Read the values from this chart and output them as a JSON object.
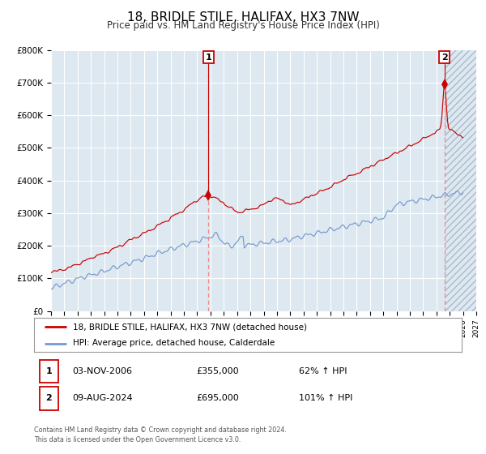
{
  "title": "18, BRIDLE STILE, HALIFAX, HX3 7NW",
  "subtitle": "Price paid vs. HM Land Registry's House Price Index (HPI)",
  "legend_red": "18, BRIDLE STILE, HALIFAX, HX3 7NW (detached house)",
  "legend_blue": "HPI: Average price, detached house, Calderdale",
  "annotation1_date": "03-NOV-2006",
  "annotation1_price": 355000,
  "annotation1_hpi": "62% ↑ HPI",
  "annotation2_date": "09-AUG-2024",
  "annotation2_price": 695000,
  "annotation2_hpi": "101% ↑ HPI",
  "footnote1": "Contains HM Land Registry data © Crown copyright and database right 2024.",
  "footnote2": "This data is licensed under the Open Government Licence v3.0.",
  "red_color": "#cc0000",
  "blue_color": "#7799cc",
  "bg_color": "#dde8f0",
  "grid_color": "#ffffff",
  "annotation_line_color": "#ee8888",
  "xmin": 1995.0,
  "xmax": 2027.0,
  "ymin": 0,
  "ymax": 800000,
  "yticks": [
    0,
    100000,
    200000,
    300000,
    400000,
    500000,
    600000,
    700000,
    800000
  ],
  "ytick_labels": [
    "£0",
    "£100K",
    "£200K",
    "£300K",
    "£400K",
    "£500K",
    "£600K",
    "£700K",
    "£800K"
  ],
  "xticks": [
    1995,
    1996,
    1997,
    1998,
    1999,
    2000,
    2001,
    2002,
    2003,
    2004,
    2005,
    2006,
    2007,
    2008,
    2009,
    2010,
    2011,
    2012,
    2013,
    2014,
    2015,
    2016,
    2017,
    2018,
    2019,
    2020,
    2021,
    2022,
    2023,
    2024,
    2025,
    2026,
    2027
  ],
  "sale1_x": 2006.84,
  "sale1_y": 355000,
  "sale2_x": 2024.61,
  "sale2_y": 695000,
  "hatch_start": 2024.61,
  "hatch_end": 2027.0
}
